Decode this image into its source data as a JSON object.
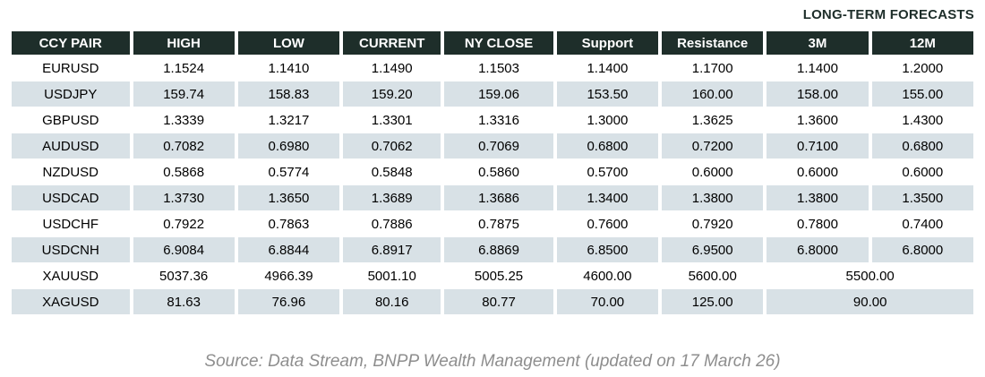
{
  "title": "LONG-TERM FORECASTS",
  "table": {
    "columns": [
      "CCY PAIR",
      "HIGH",
      "LOW",
      "CURRENT",
      "NY CLOSE",
      "Support",
      "Resistance",
      "3M",
      "12M"
    ],
    "rows": [
      {
        "pair": "EURUSD",
        "high": "1.1524",
        "low": "1.1410",
        "current": "1.1490",
        "ny_close": "1.1503",
        "support": "1.1400",
        "resistance": "1.1700",
        "m3": "1.1400",
        "m12": "1.2000"
      },
      {
        "pair": "USDJPY",
        "high": "159.74",
        "low": "158.83",
        "current": "159.20",
        "ny_close": "159.06",
        "support": "153.50",
        "resistance": "160.00",
        "m3": "158.00",
        "m12": "155.00"
      },
      {
        "pair": "GBPUSD",
        "high": "1.3339",
        "low": "1.3217",
        "current": "1.3301",
        "ny_close": "1.3316",
        "support": "1.3000",
        "resistance": "1.3625",
        "m3": "1.3600",
        "m12": "1.4300"
      },
      {
        "pair": "AUDUSD",
        "high": "0.7082",
        "low": "0.6980",
        "current": "0.7062",
        "ny_close": "0.7069",
        "support": "0.6800",
        "resistance": "0.7200",
        "m3": "0.7100",
        "m12": "0.6800"
      },
      {
        "pair": "NZDUSD",
        "high": "0.5868",
        "low": "0.5774",
        "current": "0.5848",
        "ny_close": "0.5860",
        "support": "0.5700",
        "resistance": "0.6000",
        "m3": "0.6000",
        "m12": "0.6000"
      },
      {
        "pair": "USDCAD",
        "high": "1.3730",
        "low": "1.3650",
        "current": "1.3689",
        "ny_close": "1.3686",
        "support": "1.3400",
        "resistance": "1.3800",
        "m3": "1.3800",
        "m12": "1.3500"
      },
      {
        "pair": "USDCHF",
        "high": "0.7922",
        "low": "0.7863",
        "current": "0.7886",
        "ny_close": "0.7875",
        "support": "0.7600",
        "resistance": "0.7920",
        "m3": "0.7800",
        "m12": "0.7400"
      },
      {
        "pair": "USDCNH",
        "high": "6.9084",
        "low": "6.8844",
        "current": "6.8917",
        "ny_close": "6.8869",
        "support": "6.8500",
        "resistance": "6.9500",
        "m3": "6.8000",
        "m12": "6.8000"
      },
      {
        "pair": "XAUUSD",
        "high": "5037.36",
        "low": "4966.39",
        "current": "5001.10",
        "ny_close": "5005.25",
        "support": "4600.00",
        "resistance": "5600.00",
        "m3_12": "5500.00"
      },
      {
        "pair": "XAGUSD",
        "high": "81.63",
        "low": "76.96",
        "current": "80.16",
        "ny_close": "80.77",
        "support": "70.00",
        "resistance": "125.00",
        "m3_12": "90.00"
      }
    ]
  },
  "source": "Source: Data Stream, BNPP Wealth Management (updated on 17 March 26)",
  "colors": {
    "header_bg": "#1e2e2a",
    "header_text": "#ffffff",
    "stripe_bg": "#d8e1e6",
    "title_color": "#1e2e2a",
    "source_color": "#8e8e8e"
  }
}
